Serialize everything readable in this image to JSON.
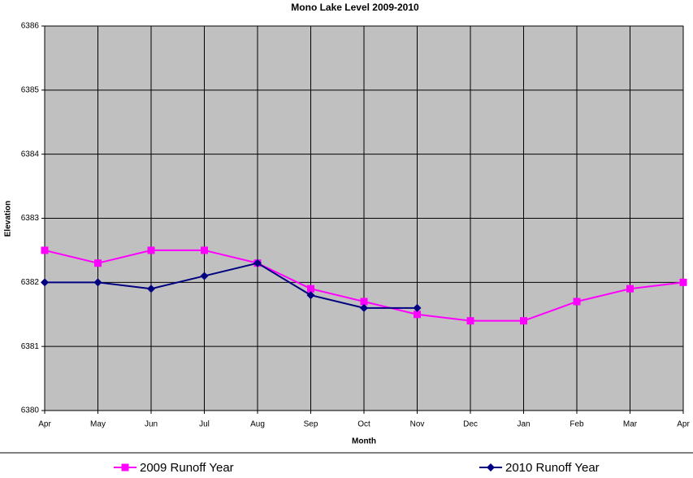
{
  "chart_data": {
    "type": "line",
    "title": "Mono Lake Level 2009-2010",
    "x_label": "Month",
    "y_label": "Elevation",
    "categories": [
      "Apr",
      "May",
      "Jun",
      "Jul",
      "Aug",
      "Sep",
      "Oct",
      "Nov",
      "Dec",
      "Jan",
      "Feb",
      "Mar",
      "Apr"
    ],
    "series": [
      {
        "name": "2009 Runoff Year",
        "color": "#ff00ff",
        "marker": "square",
        "values": [
          6382.5,
          6382.3,
          6382.5,
          6382.5,
          6382.3,
          6381.9,
          6381.7,
          6381.5,
          6381.4,
          6381.4,
          6381.7,
          6381.9,
          6382.0
        ]
      },
      {
        "name": "2010 Runoff Year",
        "color": "#000080",
        "marker": "diamond",
        "values": [
          6382.0,
          6382.0,
          6381.9,
          6382.1,
          6382.3,
          6381.8,
          6381.6,
          6381.6,
          null,
          null,
          null,
          null,
          null
        ]
      }
    ],
    "ylim": [
      6380,
      6386
    ],
    "yticks": [
      6380,
      6381,
      6382,
      6383,
      6384,
      6385,
      6386
    ],
    "grid": true,
    "plot_background": "#c0c0c0",
    "legend": "bottom"
  }
}
